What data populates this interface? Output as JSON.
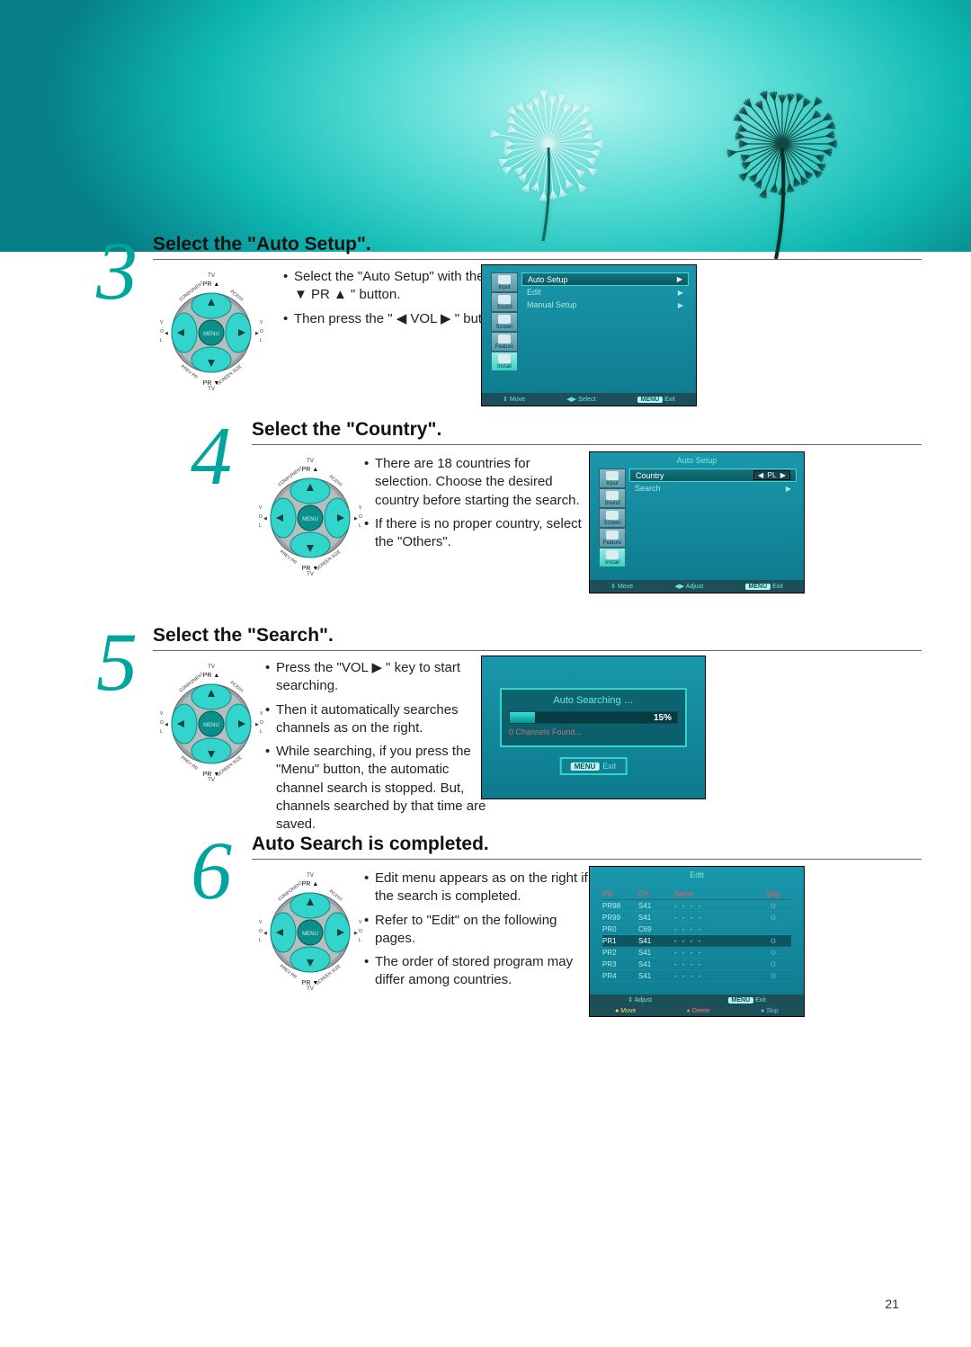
{
  "page_number": "21",
  "theme": {
    "accent": "#00a69e",
    "tv_bg": "#1a97ac",
    "tv_border_sel": "#4bd7cf",
    "text": "#222222",
    "menu_label_bg": "#b9f2ef",
    "menu_label_fg": "#07555c"
  },
  "remote": {
    "top": "PR ▲",
    "bottom": "PR ▼",
    "center": "MENU",
    "tl": "COMPONENT",
    "tr": "PC/DVI",
    "bl": "PREV PR",
    "br": "SCREEN SIZE",
    "left": "◀ V O L",
    "right": "V O L ▶"
  },
  "step3": {
    "num": "3",
    "heading": "Select the \"Auto Setup\".",
    "bullets": [
      "Select the \"Auto Setup\" with the \" ▼ PR ▲ \" button.",
      "Then press the \" ◀ VOL ▶ \" button."
    ],
    "menu": {
      "icons": [
        "Input",
        "Sound",
        "Screen",
        "Feature",
        "Install"
      ],
      "selected_icon": 4,
      "rows": [
        {
          "label": "Auto Setup",
          "sel": true,
          "suffix": "▶"
        },
        {
          "label": "Edit",
          "sel": false,
          "suffix": "▶"
        },
        {
          "label": "Manual Setup",
          "sel": false,
          "suffix": "▶"
        }
      ],
      "foot_move": "Move",
      "foot_select": "Select",
      "foot_menu": "MENU",
      "foot_exit": "Exit"
    }
  },
  "step4": {
    "num": "4",
    "heading": "Select the \"Country\".",
    "bullets": [
      "There are 18 countries for selection. Choose the desired country before starting the search.",
      "If there is no proper country, select the \"Others\"."
    ],
    "menu": {
      "title": "Auto Setup",
      "icons": [
        "Input",
        "Sound",
        "Screen",
        "Feature",
        "Install"
      ],
      "selected_icon": 4,
      "rows": [
        {
          "label": "Country",
          "sel": true,
          "value": "PL"
        },
        {
          "label": "Search",
          "sel": false,
          "suffix": "▶"
        }
      ],
      "foot_move": "Move",
      "foot_adjust": "Adjust",
      "foot_menu": "MENU",
      "foot_exit": "Exit"
    }
  },
  "step5": {
    "num": "5",
    "heading": "Select the \"Search\".",
    "bullets": [
      "Press the \"VOL ▶ \"  key to start searching.",
      "Then it automatically searches channels as on the right.",
      "While searching, if you press the \"Menu\" button, the automatic channel search is stopped. But, channels searched by that time are saved."
    ],
    "search": {
      "title": "Auto Searching …",
      "percent_label": "15%",
      "percent_value": 15,
      "found": "0 Channels Found...",
      "menu_label": "MENU",
      "exit": "Exit"
    }
  },
  "step6": {
    "num": "6",
    "heading": "Auto Search is completed.",
    "bullets": [
      "Edit menu appears as on the right if the search is completed.",
      "Refer to \"Edit\" on the following pages.",
      "The order of stored program may differ among countries."
    ],
    "edit": {
      "title": "Edit",
      "columns": [
        "PR",
        "CH",
        "Name",
        "Skip"
      ],
      "rows": [
        {
          "pr": "PR98",
          "ch": "S41",
          "name": "- - - -",
          "skip": "o",
          "sel": false
        },
        {
          "pr": "PR99",
          "ch": "S41",
          "name": "- - - -",
          "skip": "o",
          "sel": false
        },
        {
          "pr": "PR0",
          "ch": "C69",
          "name": "- - - -",
          "skip": "",
          "sel": false
        },
        {
          "pr": "PR1",
          "ch": "S41",
          "name": "- - - -",
          "skip": "o",
          "sel": true
        },
        {
          "pr": "PR2",
          "ch": "S41",
          "name": "- - - -",
          "skip": "o",
          "sel": false
        },
        {
          "pr": "PR3",
          "ch": "S41",
          "name": "- - - -",
          "skip": "o",
          "sel": false
        },
        {
          "pr": "PR4",
          "ch": "S41",
          "name": "- - - -",
          "skip": "o",
          "sel": false
        }
      ],
      "foot1_adjust": "Adjust",
      "foot1_menu": "MENU",
      "foot1_exit": "Exit",
      "foot2_move": "Move",
      "foot2_delete": "Delete",
      "foot2_skip": "Skip"
    }
  }
}
